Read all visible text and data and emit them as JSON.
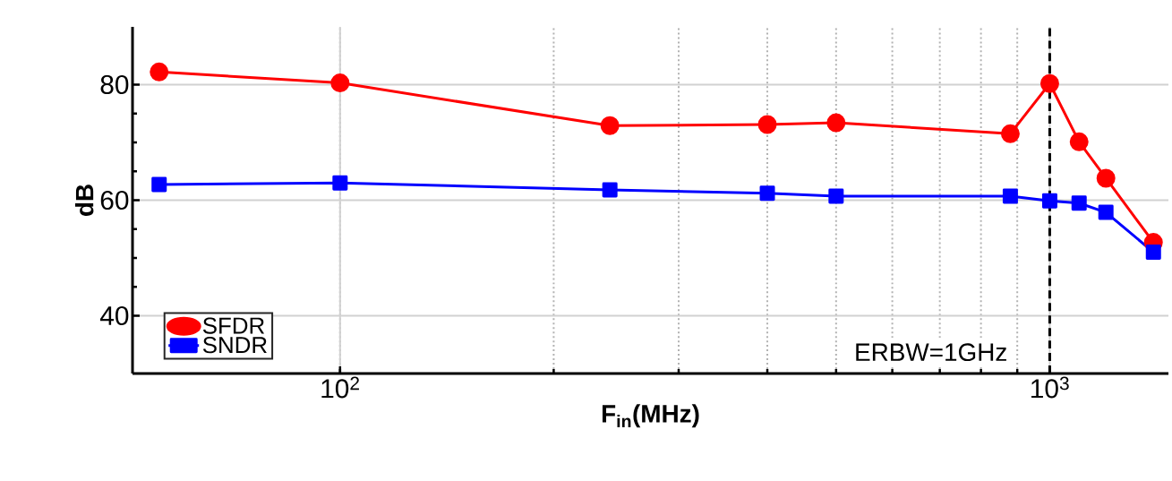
{
  "chart_data": {
    "type": "line",
    "xlabel": "F$_{in}$(MHz)",
    "ylabel": "dB",
    "log": "x",
    "xlim": [
      51,
      1470
    ],
    "ylim": [
      30,
      90
    ],
    "xticks": [
      {
        "value": 100,
        "label": "10$^{2}$"
      },
      {
        "value": 1000,
        "label": "10$^{3}$"
      }
    ],
    "yticks": [
      40,
      60,
      80
    ],
    "grid": true,
    "legend": "bottom left",
    "line_style": "solid",
    "annotations": [
      "ERBW=1GHz"
    ],
    "x": [
      55.6,
      100,
      240,
      400,
      500,
      880,
      1000,
      1100,
      1200,
      1400
    ],
    "series": [
      {
        "name": "SFDR",
        "color": "#ff0000",
        "marker": "circle",
        "values": [
          82.2,
          80.3,
          72.9,
          73.1,
          73.4,
          71.5,
          80.2,
          70.1,
          63.8,
          52.7
        ]
      },
      {
        "name": "SNDR",
        "color": "#0000ff",
        "marker": "square",
        "values": [
          62.7,
          63.0,
          61.8,
          61.2,
          60.7,
          60.7,
          59.9,
          59.5,
          57.9,
          51.0
        ]
      }
    ],
    "ref_lines": [
      {
        "axis": "x",
        "value": 1000,
        "color": "#000000",
        "line_style": "dashed"
      }
    ]
  }
}
